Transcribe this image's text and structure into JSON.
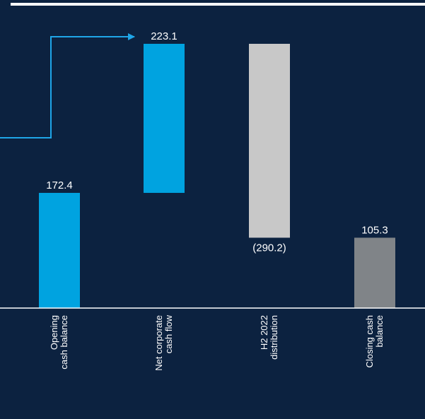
{
  "chart_data": {
    "type": "bar",
    "subtype": "waterfall",
    "categories": [
      [
        "Opening",
        "cash balance"
      ],
      [
        "Net corporate",
        "cash flow"
      ],
      [
        "H2 2022",
        "distribution"
      ],
      [
        "Closing cash",
        "balance"
      ]
    ],
    "steps": [
      {
        "kind": "total",
        "value": 172.4,
        "label": "172.4",
        "color": "#00a3e0"
      },
      {
        "kind": "delta",
        "value": 223.1,
        "label": "223.1",
        "color": "#00a3e0"
      },
      {
        "kind": "delta",
        "value": -290.2,
        "label": "(290.2)",
        "color": "#c8c8c8"
      },
      {
        "kind": "total",
        "value": 105.3,
        "label": "105.3",
        "color": "#808488"
      }
    ],
    "ylim": [
      0,
      395.5
    ],
    "grid": false,
    "colors": {
      "background": "#0c2240",
      "axis": "#ffffff",
      "connector_arrow": "#1fa6e8"
    }
  }
}
